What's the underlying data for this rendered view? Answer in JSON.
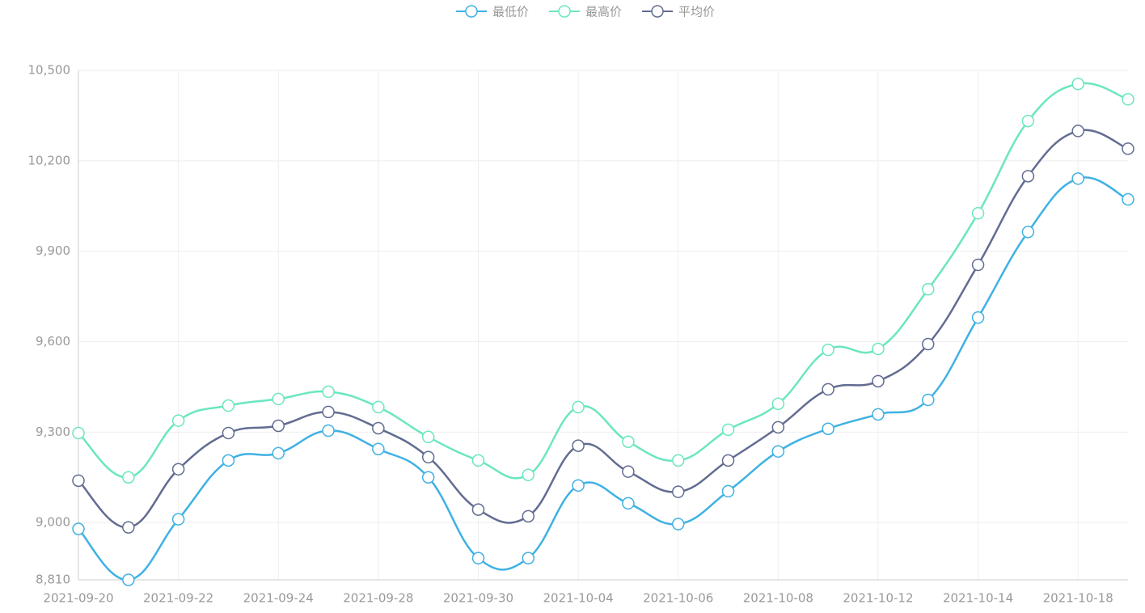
{
  "chart_data": {
    "type": "line",
    "categories": [
      "2021-09-20",
      null,
      "2021-09-22",
      null,
      "2021-09-24",
      null,
      "2021-09-28",
      null,
      "2021-09-30",
      null,
      "2021-10-04",
      null,
      "2021-10-06",
      null,
      "2021-10-08",
      null,
      "2021-10-12",
      null,
      "2021-10-14",
      null,
      "2021-10-18",
      null
    ],
    "series": [
      {
        "name": "最低价",
        "color": "#3fb1e3",
        "values": [
          8979,
          8810,
          9011,
          9206,
          9230,
          9305,
          9244,
          9150,
          8882,
          8882,
          9123,
          9064,
          8995,
          9104,
          9236,
          9311,
          9359,
          9407,
          9680,
          9964,
          10141,
          10072
        ]
      },
      {
        "name": "最高价",
        "color": "#6be6c1",
        "values": [
          9297,
          9150,
          9338,
          9388,
          9410,
          9434,
          9383,
          9284,
          9206,
          9158,
          9383,
          9268,
          9206,
          9308,
          9394,
          9573,
          9576,
          9774,
          10026,
          10332,
          10455,
          10404
        ]
      },
      {
        "name": "平均价",
        "color": "#626c91",
        "values": [
          9139,
          8984,
          9177,
          9297,
          9321,
          9367,
          9313,
          9217,
          9043,
          9021,
          9255,
          9169,
          9102,
          9206,
          9316,
          9442,
          9469,
          9592,
          9855,
          10149,
          10299,
          10240
        ]
      }
    ],
    "ylim": [
      8810,
      10500
    ],
    "yticks": [
      {
        "value": 8810,
        "label": "8,810"
      },
      {
        "value": 9000,
        "label": "9,000"
      },
      {
        "value": 9300,
        "label": "9,300"
      },
      {
        "value": 9600,
        "label": "9,600"
      },
      {
        "value": 9900,
        "label": "9,900"
      },
      {
        "value": 10200,
        "label": "10,200"
      },
      {
        "value": 10500,
        "label": "10,500"
      }
    ],
    "grid": true,
    "smooth": true,
    "legend": "top"
  }
}
